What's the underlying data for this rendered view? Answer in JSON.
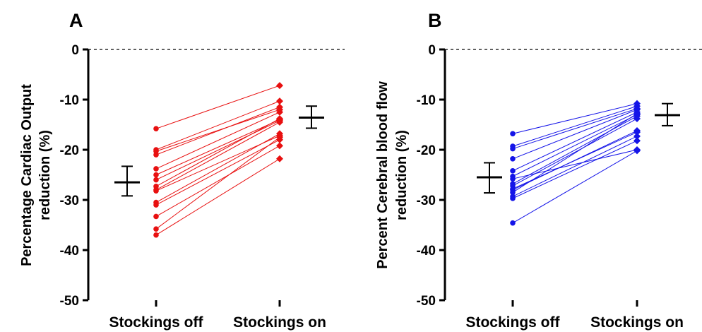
{
  "chart_data": [
    {
      "type": "scatter",
      "panel_label": "A",
      "ylabel_line1": "Percentage Cardiac Output",
      "ylabel_line2": "reduction (%)",
      "categories": [
        "Stockings off",
        "Stockings on"
      ],
      "ylim": [
        -50,
        0
      ],
      "yticks": [
        0,
        -10,
        -20,
        -30,
        -40,
        -50
      ],
      "reference_line": 0,
      "color": "#e81010",
      "pairs": [
        [
          -15.8,
          -7.2
        ],
        [
          -20.0,
          -10.3
        ],
        [
          -20.3,
          -12.0
        ],
        [
          -21.0,
          -11.5
        ],
        [
          -23.8,
          -12.5
        ],
        [
          -25.0,
          -14.0
        ],
        [
          -26.0,
          -14.2
        ],
        [
          -27.3,
          -13.8
        ],
        [
          -28.2,
          -17.2
        ],
        [
          -28.0,
          -14.5
        ],
        [
          -30.5,
          -16.8
        ],
        [
          -31.0,
          -18.0
        ],
        [
          -33.3,
          -19.2
        ],
        [
          -35.8,
          -17.5
        ],
        [
          -37.0,
          -21.8
        ]
      ],
      "summary": [
        {
          "category": "Stockings off",
          "mean": -26.5,
          "sem_low": -29.2,
          "sem_high": -23.3
        },
        {
          "category": "Stockings on",
          "mean": -13.6,
          "sem_low": -15.7,
          "sem_high": -11.3
        }
      ]
    },
    {
      "type": "scatter",
      "panel_label": "B",
      "ylabel_line1": "Percent Cerebral blood flow",
      "ylabel_line2": "reduction (%)",
      "categories": [
        "Stockings off",
        "Stockings on"
      ],
      "ylim": [
        -50,
        0
      ],
      "yticks": [
        0,
        -10,
        -20,
        -30,
        -40,
        -50
      ],
      "reference_line": 0,
      "color": "#1414e8",
      "pairs": [
        [
          -16.8,
          -10.8
        ],
        [
          -19.3,
          -11.3
        ],
        [
          -19.8,
          -11.8
        ],
        [
          -21.8,
          -12.0
        ],
        [
          -24.2,
          -12.5
        ],
        [
          -25.3,
          -13.0
        ],
        [
          -26.8,
          -13.3
        ],
        [
          -27.2,
          -13.8
        ],
        [
          -28.0,
          -16.2
        ],
        [
          -28.5,
          -12.8
        ],
        [
          -29.3,
          -17.3
        ],
        [
          -27.8,
          -16.5
        ],
        [
          -25.8,
          -20.0
        ],
        [
          -29.7,
          -18.2
        ],
        [
          -34.6,
          -20.2
        ]
      ],
      "summary": [
        {
          "category": "Stockings off",
          "mean": -25.5,
          "sem_low": -28.6,
          "sem_high": -22.6
        },
        {
          "category": "Stockings on",
          "mean": -13.1,
          "sem_low": -15.2,
          "sem_high": -10.8
        }
      ]
    }
  ]
}
